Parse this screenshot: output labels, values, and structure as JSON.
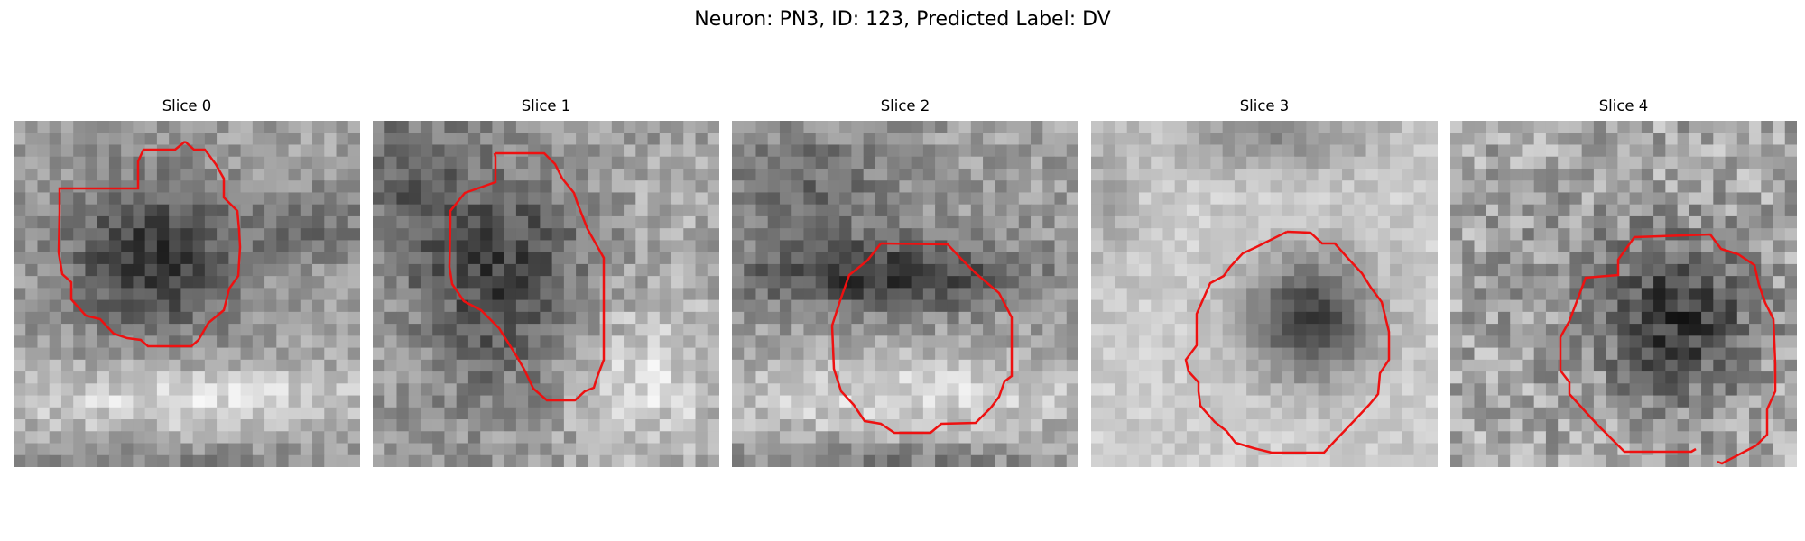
{
  "figure": {
    "title": "Neuron: PN3, ID: 123, Predicted Label: DV",
    "contour_color": "#ee1111",
    "colormap": "gray"
  },
  "panels": [
    {
      "title": "Slice 0",
      "dark_blob": "upper-left round region with faint band to the right; bright lower band"
    },
    {
      "title": "Slice 1",
      "dark_blob": "elongated dark region in center-left; bright lower-right area"
    },
    {
      "title": "Slice 2",
      "dark_blob": "dark band across middle with lighter region beneath; contour around lower-middle"
    },
    {
      "title": "Slice 3",
      "dark_blob": "round dark nucleus at center-right surrounded by bright halo"
    },
    {
      "title": "Slice 4",
      "dark_blob": "round dark nucleus at right-center in noisy background; open contour"
    }
  ]
}
